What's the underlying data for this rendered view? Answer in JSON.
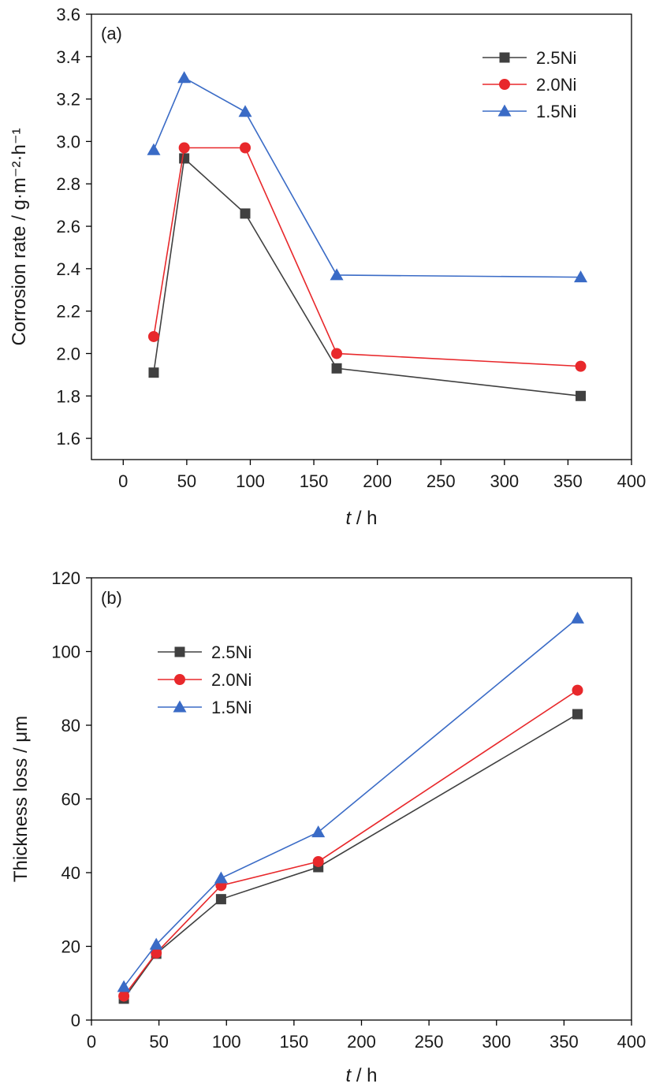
{
  "colors": {
    "series_2_5Ni": "#404040",
    "series_2_0Ni": "#e8282b",
    "series_1_5Ni": "#3a6bc6",
    "axis": "#000000"
  },
  "chart_data": [
    {
      "panel_label": "(a)",
      "type": "line",
      "ylabel": "Corrosion rate / g·m⁻²·h⁻¹",
      "xlabel_var": "t",
      "xlabel_unit": " / h",
      "xlim": [
        -25,
        400
      ],
      "ylim": [
        1.5,
        3.6
      ],
      "xticks": [
        0,
        50,
        100,
        150,
        200,
        250,
        300,
        350,
        400
      ],
      "yticks": [
        1.6,
        1.8,
        2.0,
        2.2,
        2.4,
        2.6,
        2.8,
        3.0,
        3.2,
        3.4,
        3.6
      ],
      "ytick_decimals": 1,
      "grid": false,
      "legend_position": "top-right",
      "x": [
        24,
        48,
        96,
        168,
        360
      ],
      "series": [
        {
          "name": "2.5Ni",
          "marker": "square",
          "values": [
            1.91,
            2.92,
            2.66,
            1.93,
            1.8
          ]
        },
        {
          "name": "2.0Ni",
          "marker": "circle",
          "values": [
            2.08,
            2.97,
            2.97,
            2.0,
            1.94
          ]
        },
        {
          "name": "1.5Ni",
          "marker": "triangle",
          "values": [
            2.96,
            3.3,
            3.14,
            2.37,
            2.36
          ]
        }
      ]
    },
    {
      "panel_label": "(b)",
      "type": "line",
      "ylabel": "Thickness loss / μm",
      "xlabel_var": "t",
      "xlabel_unit": " / h",
      "xlim": [
        0,
        400
      ],
      "ylim": [
        0,
        120
      ],
      "xticks": [
        0,
        50,
        100,
        150,
        200,
        250,
        300,
        350,
        400
      ],
      "yticks": [
        0,
        20,
        40,
        60,
        80,
        100,
        120
      ],
      "ytick_decimals": 0,
      "grid": false,
      "legend_position": "top-left",
      "x": [
        24,
        48,
        96,
        168,
        360
      ],
      "series": [
        {
          "name": "2.5Ni",
          "marker": "square",
          "values": [
            5.8,
            18.0,
            32.8,
            41.5,
            83.0
          ]
        },
        {
          "name": "2.0Ni",
          "marker": "circle",
          "values": [
            6.5,
            18.2,
            36.5,
            43.0,
            89.5
          ]
        },
        {
          "name": "1.5Ni",
          "marker": "triangle",
          "values": [
            9.0,
            20.5,
            38.5,
            51.0,
            109.0
          ]
        }
      ]
    }
  ]
}
